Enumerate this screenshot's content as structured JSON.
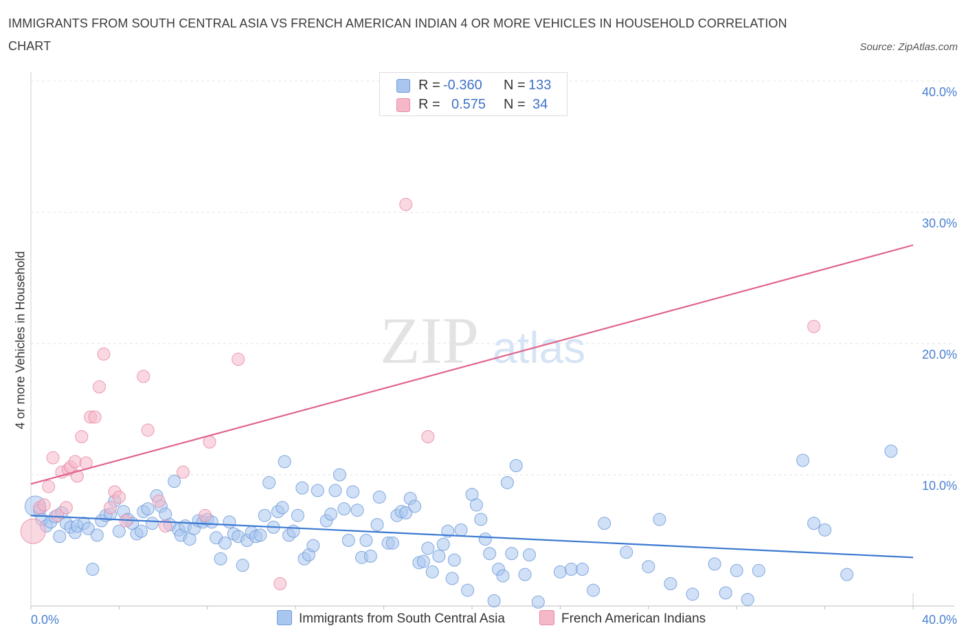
{
  "title": "IMMIGRANTS FROM SOUTH CENTRAL ASIA VS FRENCH AMERICAN INDIAN 4 OR MORE VEHICLES IN HOUSEHOLD CORRELATION CHART",
  "source": "Source: ZipAtlas.com",
  "watermark": {
    "zip": "ZIP",
    "atlas": "atlas"
  },
  "legend": {
    "rows": [
      {
        "r_label": "R =",
        "r_value": "-0.360",
        "n_label": "N =",
        "n_value": "133",
        "color": "#a9c6ef"
      },
      {
        "r_label": "R =",
        "r_value": "0.575",
        "n_label": "N =",
        "n_value": "34",
        "color": "#f5b8c8"
      }
    ]
  },
  "bottom_legend": [
    {
      "label": "Immigrants from South Central Asia",
      "color": "#a9c6ef"
    },
    {
      "label": "French American Indians",
      "color": "#f5b8c8"
    }
  ],
  "chart_data": {
    "type": "scatter",
    "ylabel": "4 or more Vehicles in Household",
    "xlim": [
      0,
      40
    ],
    "ylim": [
      0,
      40
    ],
    "x_tick_labels": [
      "0.0%",
      "40.0%"
    ],
    "y_tick_labels": [
      "10.0%",
      "20.0%",
      "30.0%",
      "40.0%"
    ],
    "y_ticks": [
      10,
      20,
      30,
      40
    ],
    "grid": true,
    "legend_position": "top-center",
    "series": [
      {
        "name": "Immigrants from South Central Asia",
        "color": "#a9c6ef",
        "stroke": "#6f9ad8",
        "trend": {
          "x": [
            0,
            40
          ],
          "y": [
            6.9,
            3.7
          ],
          "color": "#3a78d0"
        },
        "points": [
          [
            0.2,
            7.6
          ],
          [
            0.4,
            7.3
          ],
          [
            0.5,
            6.6
          ],
          [
            0.7,
            6.1
          ],
          [
            0.9,
            6.4
          ],
          [
            1.1,
            6.8
          ],
          [
            1.3,
            5.3
          ],
          [
            1.4,
            7.1
          ],
          [
            1.6,
            6.3
          ],
          [
            1.8,
            6.0
          ],
          [
            2.0,
            5.6
          ],
          [
            2.1,
            6.1
          ],
          [
            2.4,
            6.3
          ],
          [
            2.6,
            5.9
          ],
          [
            2.8,
            2.8
          ],
          [
            3.0,
            5.4
          ],
          [
            3.2,
            6.5
          ],
          [
            3.4,
            6.9
          ],
          [
            3.6,
            7.0
          ],
          [
            3.8,
            8.0
          ],
          [
            4.0,
            5.7
          ],
          [
            4.2,
            7.2
          ],
          [
            4.4,
            6.6
          ],
          [
            4.6,
            6.3
          ],
          [
            4.8,
            5.5
          ],
          [
            5.0,
            5.7
          ],
          [
            5.1,
            7.2
          ],
          [
            5.3,
            7.4
          ],
          [
            5.5,
            6.3
          ],
          [
            5.7,
            8.4
          ],
          [
            5.9,
            7.6
          ],
          [
            6.1,
            7.0
          ],
          [
            6.3,
            6.2
          ],
          [
            6.5,
            9.5
          ],
          [
            6.7,
            5.8
          ],
          [
            6.8,
            5.4
          ],
          [
            7.0,
            6.1
          ],
          [
            7.2,
            5.1
          ],
          [
            7.4,
            5.9
          ],
          [
            7.6,
            6.5
          ],
          [
            7.8,
            6.4
          ],
          [
            8.0,
            6.6
          ],
          [
            8.2,
            6.4
          ],
          [
            8.4,
            5.2
          ],
          [
            8.6,
            3.6
          ],
          [
            8.8,
            4.8
          ],
          [
            9.0,
            6.4
          ],
          [
            9.2,
            5.5
          ],
          [
            9.4,
            5.3
          ],
          [
            9.6,
            3.1
          ],
          [
            9.8,
            5.0
          ],
          [
            10.0,
            5.6
          ],
          [
            10.2,
            5.3
          ],
          [
            10.4,
            5.4
          ],
          [
            10.6,
            6.9
          ],
          [
            10.8,
            9.4
          ],
          [
            11.0,
            6.0
          ],
          [
            11.2,
            7.2
          ],
          [
            11.4,
            7.5
          ],
          [
            11.5,
            11.0
          ],
          [
            11.7,
            5.4
          ],
          [
            11.9,
            5.7
          ],
          [
            12.1,
            6.9
          ],
          [
            12.3,
            9.0
          ],
          [
            12.4,
            3.6
          ],
          [
            12.6,
            3.9
          ],
          [
            12.8,
            4.6
          ],
          [
            13.0,
            8.8
          ],
          [
            13.4,
            6.5
          ],
          [
            13.6,
            7.0
          ],
          [
            13.8,
            8.8
          ],
          [
            14.0,
            10.0
          ],
          [
            14.2,
            7.4
          ],
          [
            14.4,
            5.0
          ],
          [
            14.6,
            8.7
          ],
          [
            14.8,
            7.3
          ],
          [
            15.0,
            3.7
          ],
          [
            15.2,
            5.0
          ],
          [
            15.4,
            3.8
          ],
          [
            15.7,
            6.2
          ],
          [
            15.8,
            8.3
          ],
          [
            16.2,
            4.8
          ],
          [
            16.4,
            4.8
          ],
          [
            16.6,
            6.9
          ],
          [
            16.8,
            7.2
          ],
          [
            17.0,
            7.1
          ],
          [
            17.2,
            8.2
          ],
          [
            17.4,
            7.6
          ],
          [
            17.6,
            3.3
          ],
          [
            17.8,
            3.4
          ],
          [
            18.0,
            4.4
          ],
          [
            18.2,
            2.6
          ],
          [
            18.5,
            3.8
          ],
          [
            18.7,
            4.7
          ],
          [
            18.9,
            5.7
          ],
          [
            19.1,
            2.1
          ],
          [
            19.2,
            3.5
          ],
          [
            19.5,
            5.8
          ],
          [
            19.8,
            1.2
          ],
          [
            20.0,
            8.5
          ],
          [
            20.2,
            7.7
          ],
          [
            20.4,
            6.6
          ],
          [
            20.6,
            5.1
          ],
          [
            20.8,
            4.0
          ],
          [
            21.0,
            0.4
          ],
          [
            21.2,
            2.8
          ],
          [
            21.4,
            2.3
          ],
          [
            21.6,
            9.4
          ],
          [
            21.8,
            4.0
          ],
          [
            22.0,
            10.7
          ],
          [
            22.4,
            2.4
          ],
          [
            22.6,
            3.9
          ],
          [
            23.0,
            0.3
          ],
          [
            24.0,
            2.6
          ],
          [
            24.5,
            2.8
          ],
          [
            25.0,
            2.8
          ],
          [
            25.5,
            1.2
          ],
          [
            26.0,
            6.3
          ],
          [
            27.0,
            4.1
          ],
          [
            28.0,
            3.0
          ],
          [
            28.5,
            6.6
          ],
          [
            29.0,
            1.7
          ],
          [
            30.0,
            0.9
          ],
          [
            31.0,
            3.2
          ],
          [
            31.5,
            1.0
          ],
          [
            32.0,
            2.7
          ],
          [
            32.5,
            0.5
          ],
          [
            33.0,
            2.7
          ],
          [
            35.0,
            11.1
          ],
          [
            35.5,
            6.3
          ],
          [
            36.0,
            5.8
          ],
          [
            37.0,
            2.4
          ],
          [
            39.0,
            11.8
          ]
        ]
      },
      {
        "name": "French American Indians",
        "color": "#f5b8c8",
        "stroke": "#e68aa6",
        "trend": {
          "x": [
            0,
            40
          ],
          "y": [
            9.3,
            27.5
          ],
          "color": "#e0628c"
        },
        "points": [
          [
            0.1,
            5.7
          ],
          [
            0.4,
            7.5
          ],
          [
            0.6,
            7.7
          ],
          [
            0.8,
            9.1
          ],
          [
            1.0,
            11.3
          ],
          [
            1.2,
            6.9
          ],
          [
            1.4,
            10.2
          ],
          [
            1.6,
            7.5
          ],
          [
            1.7,
            10.4
          ],
          [
            1.8,
            10.6
          ],
          [
            2.0,
            11.0
          ],
          [
            2.1,
            9.9
          ],
          [
            2.3,
            12.9
          ],
          [
            2.5,
            10.9
          ],
          [
            2.7,
            14.4
          ],
          [
            2.9,
            14.4
          ],
          [
            3.1,
            16.7
          ],
          [
            3.3,
            19.2
          ],
          [
            3.6,
            7.5
          ],
          [
            3.8,
            8.7
          ],
          [
            4.0,
            8.3
          ],
          [
            4.3,
            6.5
          ],
          [
            5.1,
            17.5
          ],
          [
            5.3,
            13.4
          ],
          [
            5.8,
            8.0
          ],
          [
            6.1,
            6.1
          ],
          [
            6.9,
            10.2
          ],
          [
            7.9,
            6.9
          ],
          [
            8.1,
            12.5
          ],
          [
            9.4,
            18.8
          ],
          [
            11.3,
            1.7
          ],
          [
            17.0,
            30.6
          ],
          [
            18.0,
            12.9
          ],
          [
            35.5,
            21.3
          ]
        ]
      }
    ]
  }
}
